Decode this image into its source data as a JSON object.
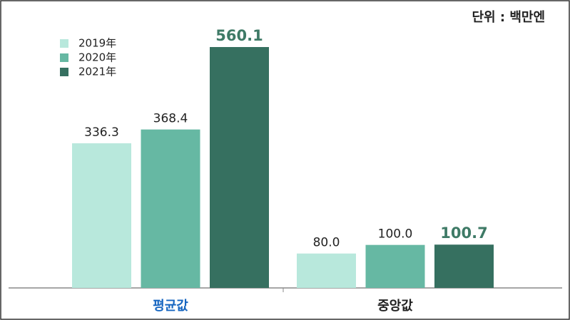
{
  "chart_data": {
    "type": "bar",
    "unit_note": "단위 : 백만엔",
    "categories": [
      "평균값",
      "중앙값"
    ],
    "category_label_colors": [
      "#1565c0",
      "#222222"
    ],
    "series": [
      {
        "name": "2019年",
        "color": "#b8e8dc",
        "values": [
          336.3,
          80.0
        ],
        "value_labels": [
          "336.3",
          "80.0"
        ]
      },
      {
        "name": "2020年",
        "color": "#66b8a3",
        "values": [
          368.4,
          100.0
        ],
        "value_labels": [
          "368.4",
          "100.0"
        ]
      },
      {
        "name": "2021年",
        "color": "#367060",
        "values": [
          560.1,
          100.7
        ],
        "value_labels": [
          "560.1",
          "100.7"
        ]
      }
    ],
    "legend": "upper left"
  }
}
